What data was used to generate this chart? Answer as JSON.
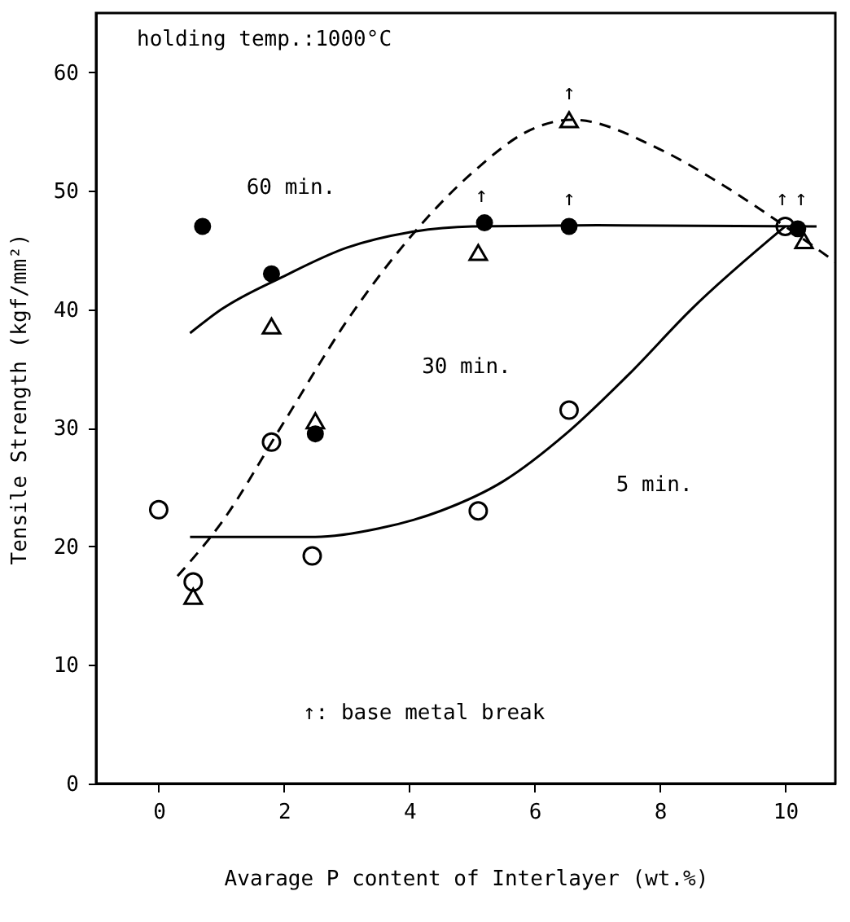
{
  "chart_data": {
    "type": "scatter",
    "title": "holding temp.:1000°C",
    "xlabel": "Avarage P content of Interlayer (wt.%)",
    "ylabel": "Tensile Strength (kgf/mm²)",
    "xlim": [
      -1,
      10.8
    ],
    "ylim": [
      0,
      65
    ],
    "xticks": [
      0,
      2,
      4,
      6,
      8,
      10
    ],
    "yticks": [
      0,
      10,
      20,
      30,
      40,
      50,
      60
    ],
    "grid": false,
    "series": [
      {
        "marker": "circle",
        "color": "#000000",
        "x": [
          0.0,
          0.55,
          1.8,
          2.45,
          5.1,
          6.55,
          10.0
        ],
        "values": [
          23.1,
          17,
          28.8,
          19.2,
          23,
          31.5,
          47
        ]
      },
      {
        "marker": "triangle",
        "color": "#000000",
        "x": [
          0.55,
          1.8,
          2.5,
          5.1,
          6.55,
          10.3
        ],
        "values": [
          15.8,
          38.6,
          30.6,
          44.8,
          56,
          45.8
        ]
      },
      {
        "marker": "circle",
        "color": "#000000",
        "x": [
          0.7,
          1.8,
          2.5,
          5.2,
          6.55,
          10.2
        ],
        "values": [
          47,
          43,
          29.5,
          47.3,
          47,
          46.8
        ]
      },
      {
        "type": "line",
        "line_style": "solid",
        "color": "#000000",
        "x": [
          0.5,
          2.5,
          3.5,
          4.5,
          5.5,
          6.5,
          7.5,
          8.5,
          10.0
        ],
        "values": [
          20.8,
          20.8,
          21.5,
          23,
          25.5,
          29.5,
          34.5,
          40,
          47
        ]
      },
      {
        "type": "line",
        "line_style": "solid",
        "color": "#000000",
        "x": [
          0.5,
          1.0,
          2.0,
          3.0,
          4.0,
          5.0,
          7.0,
          10.5
        ],
        "values": [
          38,
          40,
          42.8,
          45.2,
          46.5,
          47,
          47.1,
          47
        ]
      },
      {
        "type": "line",
        "line_style": "dashed",
        "color": "#000000",
        "x": [
          0.3,
          1.0,
          2.0,
          3.0,
          4.0,
          5.0,
          6.0,
          6.6,
          8.0,
          9.0,
          10.0,
          10.8
        ],
        "values": [
          17.5,
          22,
          30.5,
          39,
          46,
          51.5,
          55.3,
          56,
          53.5,
          50.5,
          47,
          44
        ]
      }
    ],
    "annotations": [
      "60 min.",
      "30 min.",
      "5 min.",
      "↑",
      "↑",
      "↑",
      "↑",
      "↑",
      "↑: base metal break"
    ]
  }
}
